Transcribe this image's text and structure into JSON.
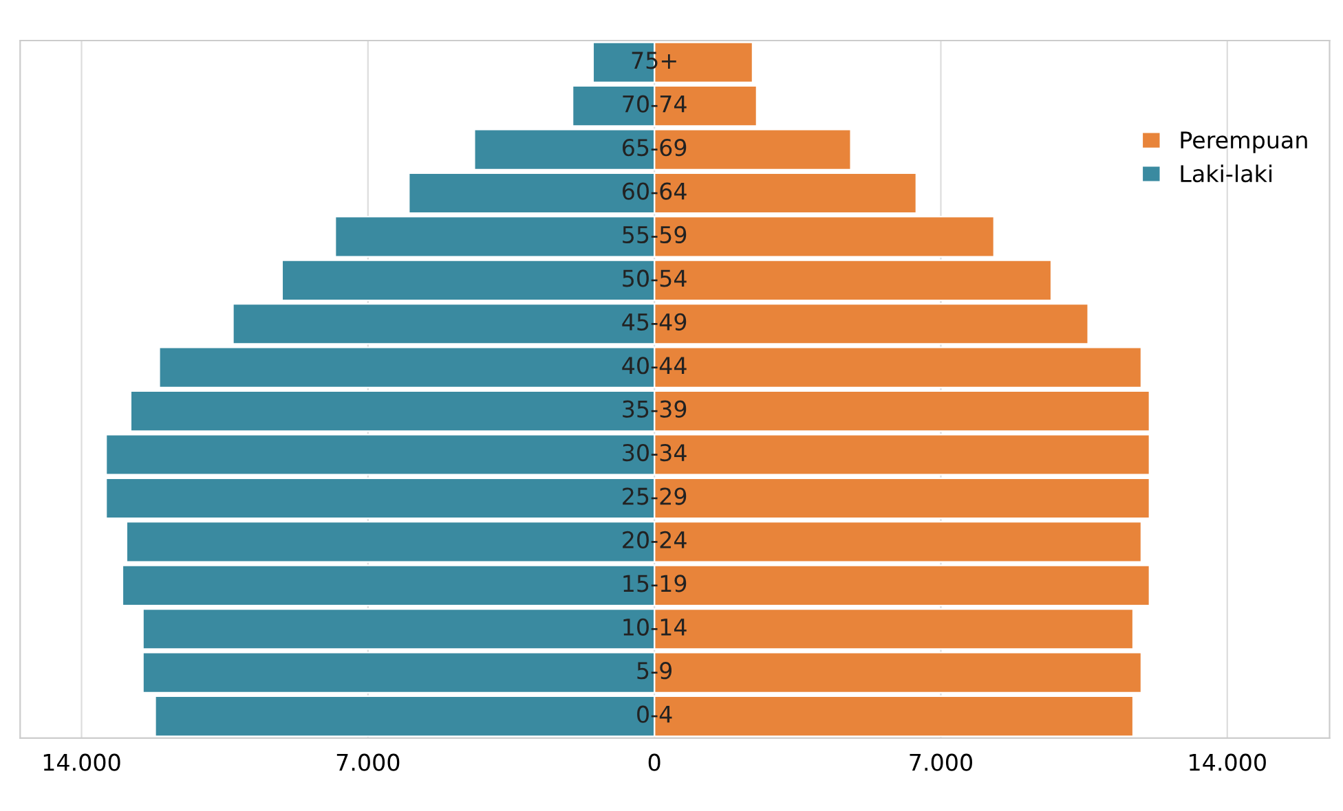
{
  "chart_data": {
    "type": "bar",
    "orientation": "horizontal",
    "stacked": true,
    "categories": [
      "75+",
      "70-74",
      "65-69",
      "60-64",
      "55-59",
      "50-54",
      "45-49",
      "40-44",
      "35-39",
      "30-34",
      "25-29",
      "20-24",
      "15-19",
      "10-14",
      "5-9",
      "0-4"
    ],
    "series": [
      {
        "name": "Perempuan",
        "color": "#e8843a",
        "values": [
          2400,
          2500,
          4800,
          6400,
          8300,
          9700,
          10600,
          11900,
          12100,
          12100,
          12100,
          11900,
          12100,
          11700,
          11900,
          11700
        ]
      },
      {
        "name": "Laki-laki",
        "color": "#3a8aa0",
        "values": [
          -1500,
          -2000,
          -4400,
          -6000,
          -7800,
          -9100,
          -10300,
          -12100,
          -12800,
          -13400,
          -13400,
          -12900,
          -13000,
          -12500,
          -12500,
          -12200
        ]
      }
    ],
    "xlim": [
      -15500,
      16500
    ],
    "xticks": [
      {
        "value": -14000,
        "label": "14.000"
      },
      {
        "value": -7000,
        "label": "7.000"
      },
      0,
      {
        "value": 7000,
        "label": "7.000"
      },
      {
        "value": 14000,
        "label": "14.000"
      }
    ],
    "grid": "x",
    "legend": "top right"
  }
}
